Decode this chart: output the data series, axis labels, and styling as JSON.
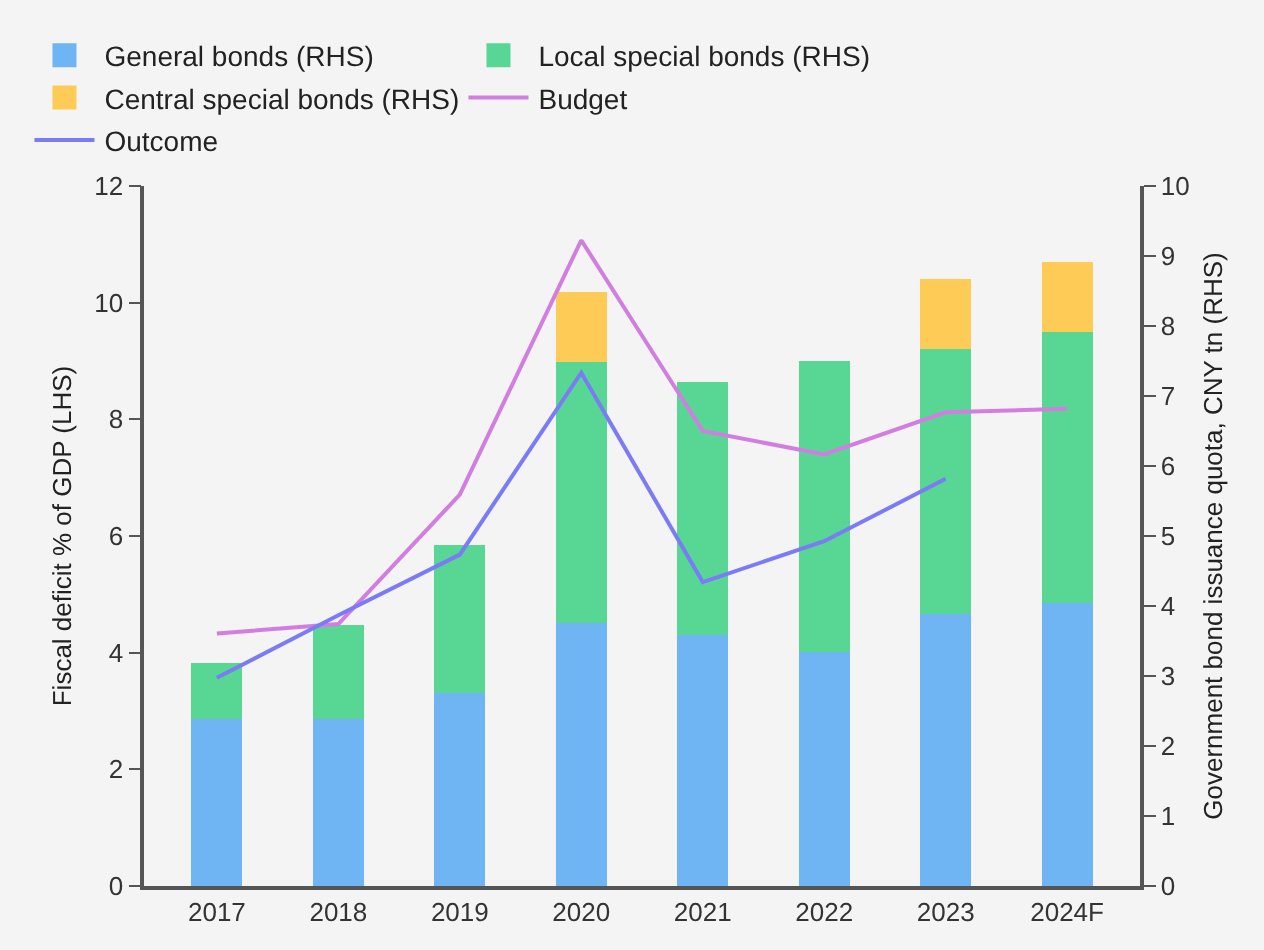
{
  "chart_data": {
    "type": "bar",
    "stacked": true,
    "categories": [
      "2017",
      "2018",
      "2019",
      "2020",
      "2021",
      "2022",
      "2023",
      "2024F"
    ],
    "ylabel": "Fiscal deficit % of GDP (LHS)",
    "y2label": "Government bond issuance quota, CNY tn (RHS)",
    "ylim": [
      0,
      12
    ],
    "yticks": [
      0,
      2,
      4,
      6,
      8,
      10,
      12
    ],
    "y2lim": [
      0,
      10
    ],
    "y2ticks": [
      0,
      1,
      2,
      3,
      4,
      5,
      6,
      7,
      8,
      9,
      10
    ],
    "grid": false,
    "legend": "top",
    "series": [
      {
        "name": "General bonds (RHS)",
        "color": "#6fb5f3",
        "axis": "y2",
        "values": [
          2.38,
          2.38,
          2.76,
          3.76,
          3.59,
          3.34,
          3.88,
          4.04
        ]
      },
      {
        "name": "Local special bonds (RHS)",
        "color": "#57d694",
        "axis": "y2",
        "values": [
          0.8,
          1.35,
          2.11,
          3.73,
          3.61,
          4.16,
          3.79,
          3.88
        ]
      },
      {
        "name": "Central special bonds (RHS)",
        "color": "#ffcb57",
        "axis": "y2",
        "values": [
          null,
          null,
          null,
          1.0,
          null,
          null,
          1.0,
          1.0
        ]
      },
      {
        "name": "Budget",
        "color": "#d17ee0",
        "type": "line",
        "values": [
          4.33,
          4.49,
          6.71,
          11.07,
          7.8,
          7.4,
          8.12,
          8.18
        ]
      },
      {
        "name": "Outcome",
        "color": "#7b7cf5",
        "type": "line",
        "values": [
          3.57,
          4.64,
          5.68,
          8.8,
          5.21,
          5.91,
          6.98,
          null
        ]
      }
    ]
  }
}
